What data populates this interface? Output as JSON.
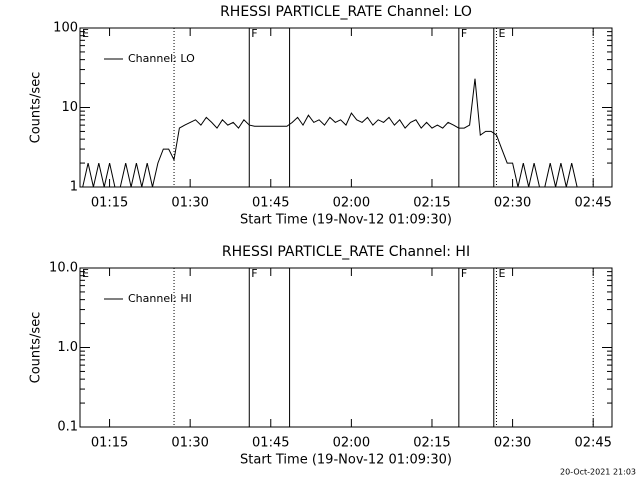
{
  "chart_data": [
    {
      "type": "line",
      "title": "RHESSI PARTICLE_RATE Channel: LO",
      "xlabel": "Start Time (19-Nov-12 01:09:30)",
      "ylabel": "Counts/sec",
      "log_y": true,
      "xlim": [
        "01:09:30",
        "02:48:30"
      ],
      "xticks": [
        "01:15",
        "01:30",
        "01:45",
        "02:00",
        "02:15",
        "02:30",
        "02:45"
      ],
      "ylim": [
        1,
        100
      ],
      "yticks": [
        1,
        10,
        100
      ],
      "vlines": [
        {
          "x": "01:27",
          "style": "dotted"
        },
        {
          "x": "01:41",
          "style": "solid"
        },
        {
          "x": "01:48:30",
          "style": "solid"
        },
        {
          "x": "02:20",
          "style": "solid"
        },
        {
          "x": "02:26:30",
          "style": "solid"
        },
        {
          "x": "02:27",
          "style": "dotted"
        },
        {
          "x": "02:45",
          "style": "dotted"
        }
      ],
      "annotations": [
        {
          "x": "01:09:30",
          "text": "E"
        },
        {
          "x": "01:41",
          "text": "F"
        },
        {
          "x": "02:20",
          "text": "F"
        },
        {
          "x": "02:27",
          "text": "E"
        }
      ],
      "series": [
        {
          "name": "Channel: LO",
          "color": "#000000",
          "x": [
            "01:10",
            "01:11",
            "01:12",
            "01:13",
            "01:14",
            "01:15",
            "01:16",
            "01:17",
            "01:18",
            "01:19",
            "01:20",
            "01:21",
            "01:22",
            "01:23",
            "01:24",
            "01:25",
            "01:26",
            "01:27",
            "01:28",
            "01:29",
            "01:30",
            "01:31",
            "01:32",
            "01:33",
            "01:34",
            "01:35",
            "01:36",
            "01:37",
            "01:38",
            "01:39",
            "01:40",
            "01:41",
            "01:42",
            "01:43",
            "01:44",
            "01:45",
            "01:46",
            "01:47",
            "01:48",
            "01:49",
            "01:50",
            "01:51",
            "01:52",
            "01:53",
            "01:54",
            "01:55",
            "01:56",
            "01:57",
            "01:58",
            "01:59",
            "02:00",
            "02:01",
            "02:02",
            "02:03",
            "02:04",
            "02:05",
            "02:06",
            "02:07",
            "02:08",
            "02:09",
            "02:10",
            "02:11",
            "02:12",
            "02:13",
            "02:14",
            "02:15",
            "02:16",
            "02:17",
            "02:18",
            "02:19",
            "02:20",
            "02:21",
            "02:22",
            "02:23",
            "02:24",
            "02:25",
            "02:26",
            "02:27",
            "02:28",
            "02:29",
            "02:30",
            "02:31",
            "02:32",
            "02:33",
            "02:34",
            "02:35",
            "02:36",
            "02:37",
            "02:38",
            "02:39",
            "02:40",
            "02:41",
            "02:42"
          ],
          "values": [
            1,
            2,
            1,
            2,
            1,
            2,
            1,
            1,
            2,
            1,
            2,
            1,
            2,
            1,
            2,
            3,
            3,
            2.2,
            5.5,
            6,
            6.5,
            7,
            6,
            7.5,
            6.5,
            5.5,
            7,
            6,
            6.5,
            5.5,
            7,
            6,
            5.8,
            5.8,
            5.8,
            5.8,
            5.8,
            5.8,
            5.8,
            6.5,
            7.5,
            6,
            8,
            6.5,
            7,
            6,
            7.5,
            6.5,
            7,
            6,
            8.5,
            7,
            6.5,
            7.5,
            6,
            7,
            6.5,
            7.5,
            6,
            7,
            5.5,
            6.5,
            7,
            5.5,
            6.5,
            5.5,
            6,
            5.5,
            6.5,
            6,
            5.5,
            5.5,
            6,
            23,
            4.5,
            5,
            5,
            4.5,
            3,
            2,
            2,
            1,
            2,
            1,
            2,
            1,
            1,
            2,
            1,
            2,
            1,
            2,
            1
          ]
        }
      ]
    },
    {
      "type": "line",
      "title": "RHESSI PARTICLE_RATE Channel: HI",
      "xlabel": "Start Time (19-Nov-12 01:09:30)",
      "ylabel": "Counts/sec",
      "log_y": true,
      "xlim": [
        "01:09:30",
        "02:48:30"
      ],
      "xticks": [
        "01:15",
        "01:30",
        "01:45",
        "02:00",
        "02:15",
        "02:30",
        "02:45"
      ],
      "ylim": [
        0.1,
        10
      ],
      "yticks": [
        {
          "value": 0.1,
          "label": "0.1"
        },
        {
          "value": 1,
          "label": "1.0"
        },
        {
          "value": 10,
          "label": "10.0"
        }
      ],
      "vlines": [
        {
          "x": "01:27",
          "style": "dotted"
        },
        {
          "x": "01:41",
          "style": "solid"
        },
        {
          "x": "01:48:30",
          "style": "solid"
        },
        {
          "x": "02:20",
          "style": "solid"
        },
        {
          "x": "02:26:30",
          "style": "solid"
        },
        {
          "x": "02:27",
          "style": "dotted"
        },
        {
          "x": "02:45",
          "style": "dotted"
        }
      ],
      "annotations": [
        {
          "x": "01:09:30",
          "text": "E"
        },
        {
          "x": "01:41",
          "text": "F"
        },
        {
          "x": "02:20",
          "text": "F"
        },
        {
          "x": "02:27",
          "text": "E"
        }
      ],
      "series": [
        {
          "name": "Channel: HI",
          "color": "#000000",
          "x": [],
          "values": []
        }
      ]
    }
  ],
  "footer": "20-Oct-2021 21:03"
}
